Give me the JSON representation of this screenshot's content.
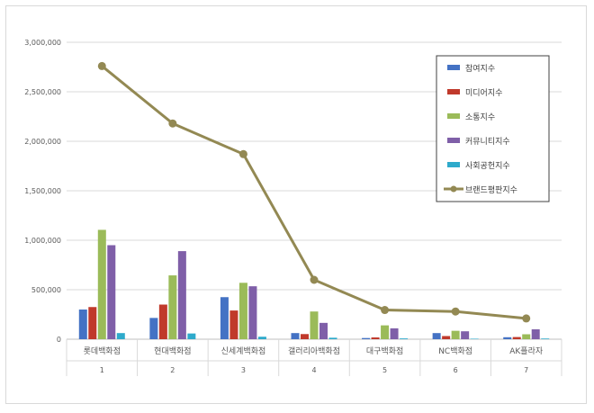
{
  "chart_data": {
    "type": "bar",
    "categories": [
      "롯데백화점",
      "현대백화점",
      "신세계백화점",
      "갤러리아백화점",
      "대구백화점",
      "NC백화점",
      "AK플라자"
    ],
    "ranks": [
      "1",
      "2",
      "3",
      "4",
      "5",
      "6",
      "7"
    ],
    "ylim": [
      0,
      3000000
    ],
    "yticks": [
      "0",
      "500,000",
      "1,000,000",
      "1,500,000",
      "2,000,000",
      "2,500,000",
      "3,000,000"
    ],
    "ytick_values": [
      0,
      500000,
      1000000,
      1500000,
      2000000,
      2500000,
      3000000
    ],
    "grid": true,
    "legend_position": "top-right",
    "series": [
      {
        "name": "참여지수",
        "type": "bar",
        "color": "#4472c4",
        "values": [
          300000,
          215000,
          425000,
          62000,
          12000,
          62000,
          20000
        ]
      },
      {
        "name": "미디어지수",
        "type": "bar",
        "color": "#c0392b",
        "values": [
          325000,
          350000,
          290000,
          52000,
          18000,
          32000,
          22000
        ]
      },
      {
        "name": "소통지수",
        "type": "bar",
        "color": "#9bbb59",
        "values": [
          1105000,
          645000,
          570000,
          280000,
          140000,
          85000,
          50000
        ]
      },
      {
        "name": "커뮤니티지수",
        "type": "bar",
        "color": "#7f5fa8",
        "values": [
          950000,
          890000,
          535000,
          165000,
          110000,
          80000,
          100000
        ]
      },
      {
        "name": "사회공헌지수",
        "type": "bar",
        "color": "#2eaacb",
        "values": [
          62000,
          58000,
          25000,
          15000,
          8000,
          5000,
          7000
        ]
      },
      {
        "name": "브랜드평판지수",
        "type": "line",
        "color": "#938953",
        "values": [
          2760000,
          2180000,
          1870000,
          600000,
          295000,
          280000,
          210000
        ]
      }
    ]
  }
}
